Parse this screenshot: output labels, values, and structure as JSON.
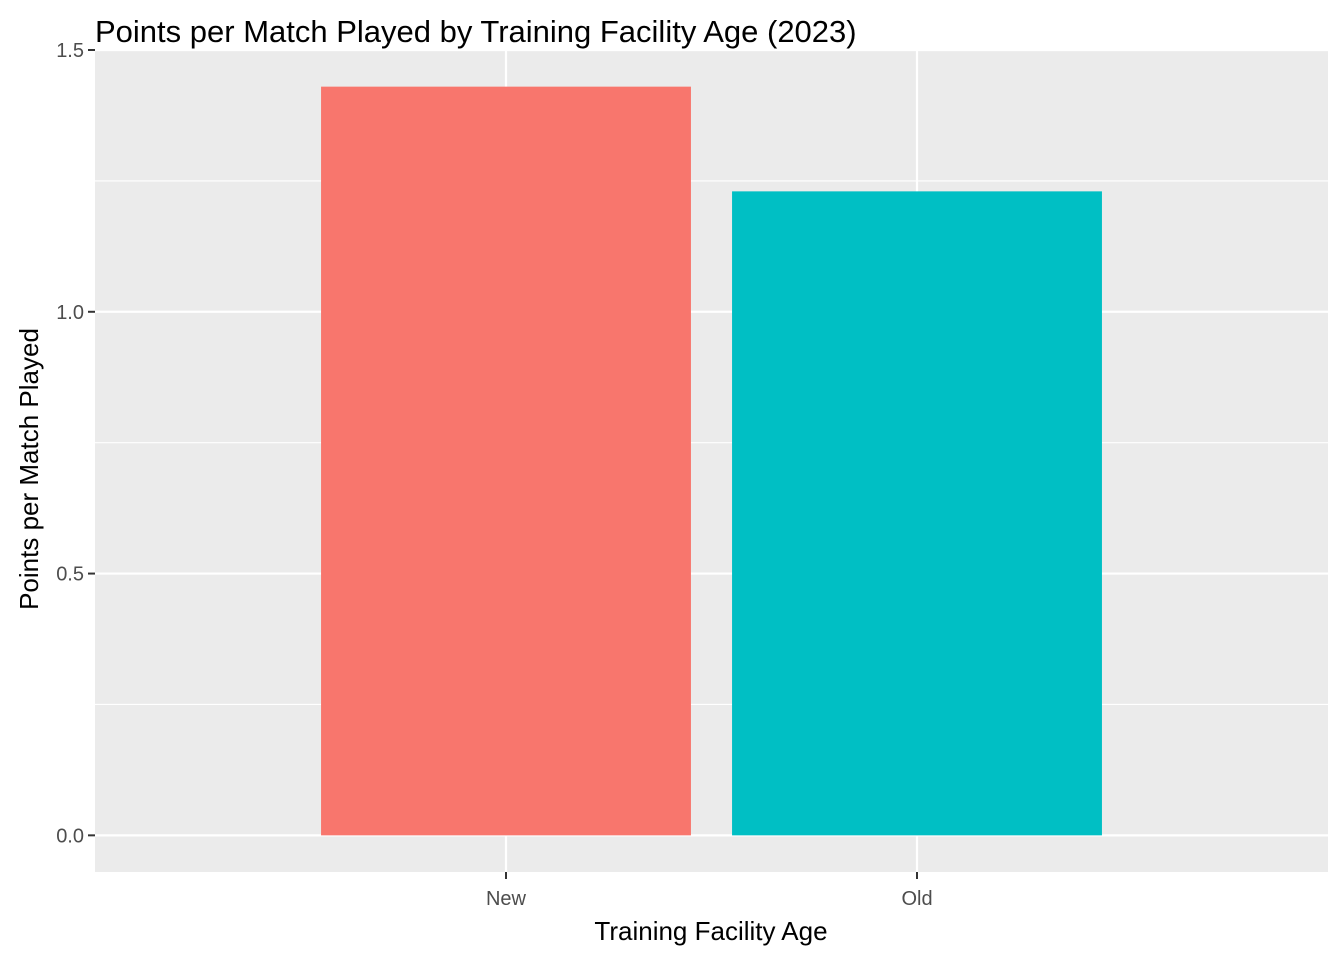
{
  "chart_data": {
    "type": "bar",
    "title": "Points per Match Played by Training Facility Age (2023)",
    "xlabel": "Training Facility Age",
    "ylabel": "Points per Match Played",
    "categories": [
      "New",
      "Old"
    ],
    "values": [
      1.43,
      1.23
    ],
    "colors": [
      "#F8766D",
      "#00BFC4"
    ],
    "ylim": [
      -0.07,
      1.5
    ],
    "yticks": [
      0.0,
      0.5,
      1.0,
      1.5
    ],
    "ytick_labels": [
      "0.0",
      "0.5",
      "1.0",
      "1.5"
    ],
    "grid": true,
    "legend": "none",
    "panel_background": "#EBEBEB"
  }
}
